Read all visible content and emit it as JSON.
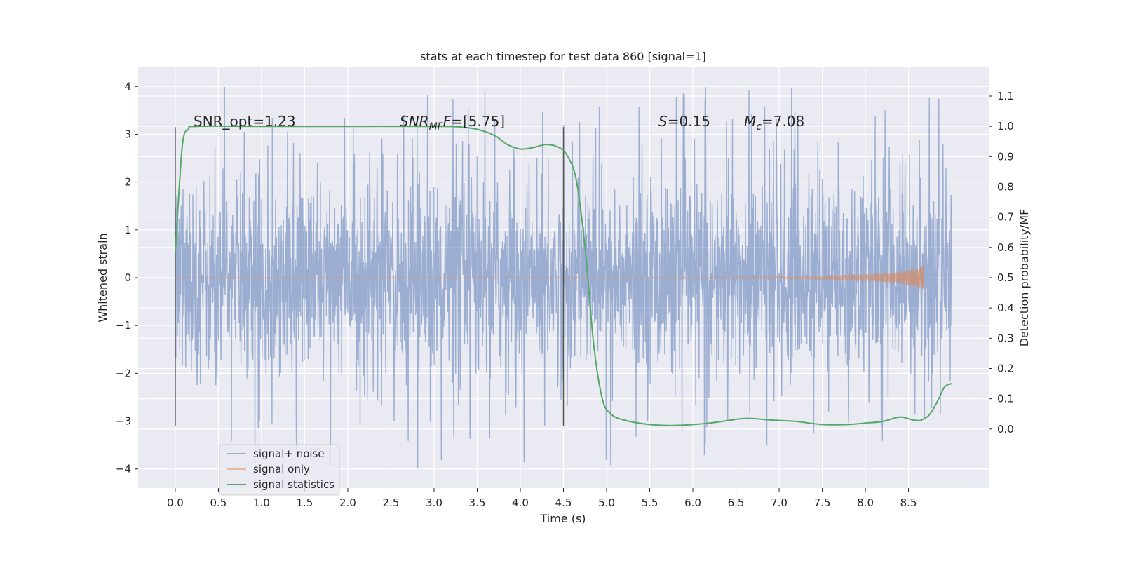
{
  "chart_data": {
    "type": "line",
    "title": "stats at each timestep for test data 860 [signal=1]",
    "xlabel": "Time (s)",
    "ylabel": "Whitened strain",
    "y2label": "Detection probability/MF",
    "xlim": [
      -0.43,
      9.43
    ],
    "ylim": [
      -4.4,
      4.4
    ],
    "y2lim": [
      -0.195,
      1.195
    ],
    "x_ticks": [
      0.0,
      0.5,
      1.0,
      1.5,
      2.0,
      2.5,
      3.0,
      3.5,
      4.0,
      4.5,
      5.0,
      5.5,
      6.0,
      6.5,
      7.0,
      7.5,
      8.0,
      8.5
    ],
    "x_tick_labels": [
      "0.0",
      "0.5",
      "1.0",
      "1.5",
      "2.0",
      "2.5",
      "3.0",
      "3.5",
      "4.0",
      "4.5",
      "5.0",
      "5.5",
      "6.0",
      "6.5",
      "7.0",
      "7.5",
      "8.0",
      "8.5"
    ],
    "y_ticks": [
      -4,
      -3,
      -2,
      -1,
      0,
      1,
      2,
      3,
      4
    ],
    "y_tick_labels": [
      "−4",
      "−3",
      "−2",
      "−1",
      "0",
      "1",
      "2",
      "3",
      "4"
    ],
    "y2_ticks": [
      0.0,
      0.1,
      0.2,
      0.3,
      0.4,
      0.5,
      0.6,
      0.7,
      0.8,
      0.9,
      1.0,
      1.1
    ],
    "y2_tick_labels": [
      "0.0",
      "0.1",
      "0.2",
      "0.3",
      "0.4",
      "0.5",
      "0.6",
      "0.7",
      "0.8",
      "0.9",
      "1.0",
      "1.1"
    ],
    "grid": true,
    "legend_position": "lower-left",
    "series": [
      {
        "name": "signal+ noise",
        "color": "#4c72b0",
        "kind": "noise",
        "x_range": [
          0.0,
          9.0
        ],
        "typical_amplitude": 1.0,
        "peak_amplitude": 4.0
      },
      {
        "name": "signal only",
        "color": "#dd8452",
        "kind": "chirp",
        "x_range": [
          0.0,
          8.68
        ],
        "envelope": [
          [
            0.0,
            0.0
          ],
          [
            5.0,
            0.005
          ],
          [
            7.0,
            0.02
          ],
          [
            8.0,
            0.06
          ],
          [
            8.4,
            0.12
          ],
          [
            8.6,
            0.2
          ],
          [
            8.68,
            0.25
          ]
        ]
      },
      {
        "name": "signal statistics",
        "color": "#55a868",
        "kind": "line",
        "axis": "right",
        "points": [
          [
            0.0,
            0.58
          ],
          [
            0.08,
            0.93
          ],
          [
            0.15,
            0.99
          ],
          [
            0.25,
            1.0
          ],
          [
            1.0,
            1.0
          ],
          [
            2.0,
            1.0
          ],
          [
            3.0,
            1.0
          ],
          [
            3.3,
            0.998
          ],
          [
            3.5,
            0.99
          ],
          [
            3.7,
            0.97
          ],
          [
            3.85,
            0.94
          ],
          [
            4.0,
            0.925
          ],
          [
            4.15,
            0.93
          ],
          [
            4.3,
            0.94
          ],
          [
            4.45,
            0.93
          ],
          [
            4.55,
            0.9
          ],
          [
            4.65,
            0.82
          ],
          [
            4.75,
            0.6
          ],
          [
            4.85,
            0.28
          ],
          [
            4.95,
            0.1
          ],
          [
            5.05,
            0.05
          ],
          [
            5.2,
            0.03
          ],
          [
            5.5,
            0.015
          ],
          [
            5.8,
            0.012
          ],
          [
            6.2,
            0.02
          ],
          [
            6.6,
            0.035
          ],
          [
            6.9,
            0.03
          ],
          [
            7.2,
            0.025
          ],
          [
            7.5,
            0.015
          ],
          [
            7.8,
            0.015
          ],
          [
            8.0,
            0.02
          ],
          [
            8.2,
            0.025
          ],
          [
            8.4,
            0.04
          ],
          [
            8.55,
            0.03
          ],
          [
            8.65,
            0.03
          ],
          [
            8.75,
            0.05
          ],
          [
            8.85,
            0.1
          ],
          [
            8.92,
            0.14
          ],
          [
            9.0,
            0.15
          ]
        ]
      }
    ],
    "markers": [
      {
        "x": 0.0,
        "y_range": [
          -3.1,
          3.15
        ]
      },
      {
        "x": 4.5,
        "y_range": [
          -3.1,
          3.15
        ]
      }
    ],
    "annotations": [
      {
        "text_pre": "SNR_opt=1.23",
        "x": 0.2,
        "y": 3.15
      },
      {
        "text_italic": "SNR",
        "text_sub": "MF",
        "text_italic_after": "F",
        "text_post": "=[5.75]",
        "x": 2.6,
        "y": 3.15
      },
      {
        "text_italic": "S",
        "text_post": "=0.15",
        "x": 5.6,
        "y": 3.15
      },
      {
        "text_italic": "M",
        "text_sub": "c",
        "text_post": "=7.08",
        "x": 6.6,
        "y": 3.15
      }
    ]
  }
}
